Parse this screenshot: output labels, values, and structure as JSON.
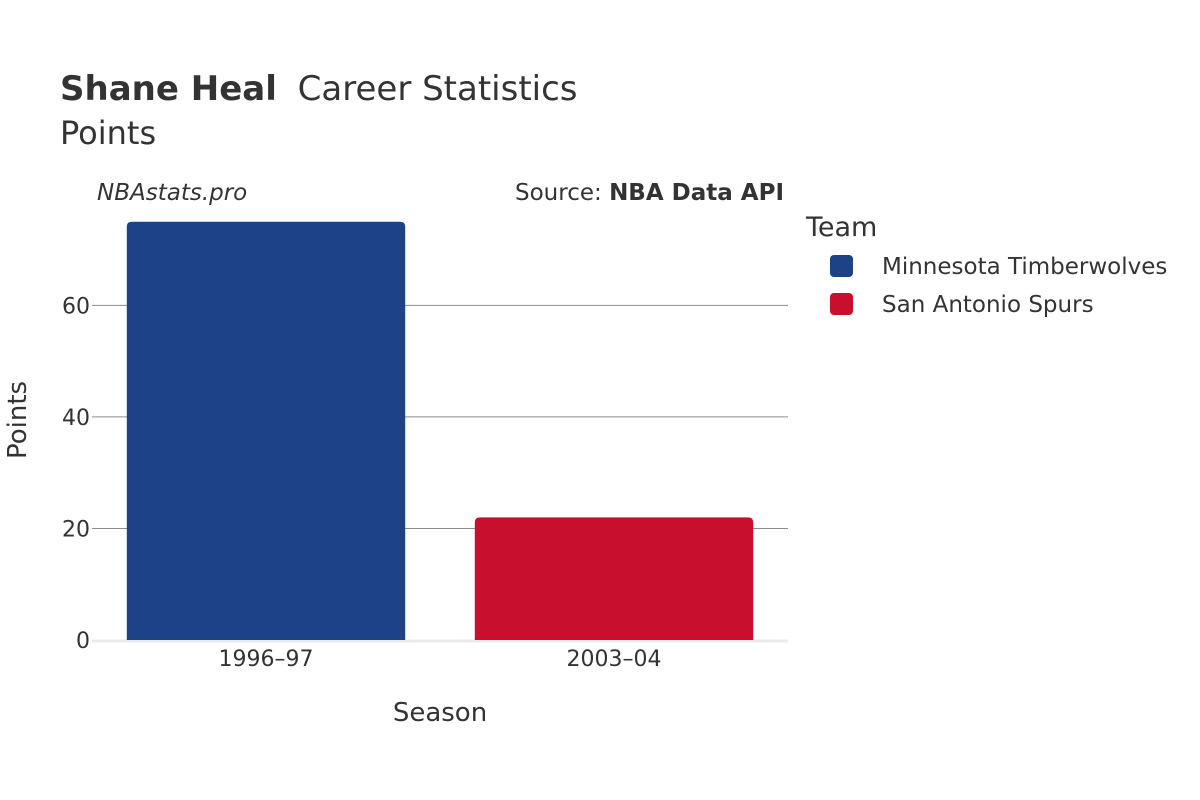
{
  "chart_data": {
    "type": "bar",
    "title_bold": "Shane Heal",
    "title_rest": "Career Statistics",
    "subtitle": "Points",
    "watermark": "NBAstats.pro",
    "source_prefix": "Source:",
    "source_name": "NBA Data API",
    "xlabel": "Season",
    "ylabel": "Points",
    "categories": [
      "1996–97",
      "2003–04"
    ],
    "series": [
      {
        "name": "Minnesota Timberwolves",
        "color": "#1d4285",
        "values": [
          75,
          0
        ]
      },
      {
        "name": "San Antonio Spurs",
        "color": "#c8102e",
        "values": [
          0,
          22
        ]
      }
    ],
    "values": [
      75,
      22
    ],
    "bar_colors": [
      "#1d4285",
      "#c8102e"
    ],
    "ylim": [
      0,
      78.9
    ],
    "yticks": [
      0,
      20,
      40,
      60
    ],
    "grid": true,
    "legend_title": "Team",
    "legend_position": "right"
  }
}
